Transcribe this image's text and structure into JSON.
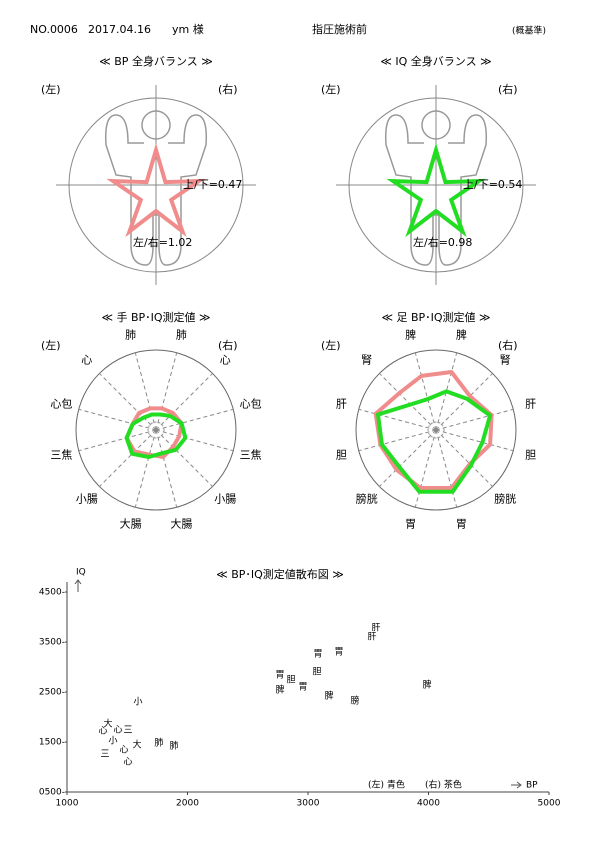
{
  "header": {
    "number": "NO.0006",
    "date": "2017.04.16",
    "name": "ym 様",
    "session": "指圧施術前",
    "note": "(概基準)"
  },
  "balance": [
    {
      "title": "≪ BP 全身バランス ≫",
      "left": "(左)",
      "right": "(右)",
      "up_down": "上/下=0.47",
      "left_right": "左/右=1.02",
      "color": "#f08c8c"
    },
    {
      "title": "≪ IQ 全身バランス ≫",
      "left": "(左)",
      "right": "(右)",
      "up_down": "上/下=0.54",
      "left_right": "左/右=0.98",
      "color": "#22dd22"
    }
  ],
  "radars": [
    {
      "title": "≪ 手 BP･IQ測定値 ≫",
      "left": "(左)",
      "right": "(右)",
      "labels": [
        "肺",
        "心",
        "心包",
        "三焦",
        "小腸",
        "大腸",
        "大腸",
        "小腸",
        "三焦",
        "心包",
        "心",
        "肺"
      ],
      "label_colors": [
        "#1a1aa0",
        "#1a1aa0",
        "#1a1aa0",
        "#8b1a1a",
        "#8b1a1a",
        "#8b1a1a",
        "#8b1a1a",
        "#8b1a1a",
        "#8b1a1a",
        "#1a1aa0",
        "#1a1aa0",
        "#1a1aa0"
      ],
      "series": [
        {
          "color": "#f08c8c",
          "values": [
            0.28,
            0.3,
            0.33,
            0.3,
            0.3,
            0.35,
            0.32,
            0.38,
            0.38,
            0.3,
            0.3,
            0.28
          ]
        },
        {
          "color": "#22dd22",
          "values": [
            0.2,
            0.25,
            0.33,
            0.38,
            0.35,
            0.3,
            0.35,
            0.42,
            0.38,
            0.3,
            0.22,
            0.2
          ]
        }
      ]
    },
    {
      "title": "≪ 足 BP･IQ測定値 ≫",
      "left": "(左)",
      "right": "(右)",
      "labels": [
        "脾",
        "腎",
        "肝",
        "胆",
        "膀胱",
        "胃",
        "胃",
        "膀胱",
        "胆",
        "肝",
        "腎",
        "脾"
      ],
      "label_colors": [
        "#1a1aa0",
        "#1a1aa0",
        "#1a1aa0",
        "#8b1a1a",
        "#8b1a1a",
        "#8b1a1a",
        "#8b1a1a",
        "#8b1a1a",
        "#8b1a1a",
        "#1a1aa0",
        "#1a1aa0",
        "#1a1aa0"
      ],
      "series": [
        {
          "color": "#f08c8c",
          "values": [
            0.75,
            0.6,
            0.72,
            0.7,
            0.6,
            0.75,
            0.75,
            0.7,
            0.72,
            0.78,
            0.65,
            0.7
          ]
        },
        {
          "color": "#22dd22",
          "values": [
            0.5,
            0.55,
            0.7,
            0.6,
            0.62,
            0.8,
            0.8,
            0.65,
            0.7,
            0.75,
            0.45,
            0.4
          ]
        }
      ]
    }
  ],
  "chart_data": {
    "type": "scatter",
    "title": "≪ BP･IQ測定値散布図 ≫",
    "xlabel": "BP",
    "ylabel": "IQ",
    "xlim": [
      1000,
      5000
    ],
    "ylim": [
      500,
      4500
    ],
    "xticks": [
      1000,
      2000,
      3000,
      4000,
      5000
    ],
    "yticks": [
      {
        "value": 500,
        "label": "0500-"
      },
      {
        "value": 1500,
        "label": "1500-"
      },
      {
        "value": 2500,
        "label": "2500-"
      },
      {
        "value": 3500,
        "label": "3500-"
      },
      {
        "value": 4500,
        "label": "4500-"
      }
    ],
    "series": [
      {
        "name": "(左) 青色",
        "color": "#1a1aa0",
        "x": [
          3564,
          3083,
          3075,
          2959,
          3174,
          3390,
          1589,
          1506,
          1473,
          1581,
          1763,
          1506
        ],
        "y": [
          3780,
          3260,
          2900,
          2600,
          2420,
          2320,
          2300,
          1740,
          1340,
          1440,
          1480,
          1100
        ],
        "labels": [
          "肝",
          "胃",
          "胆",
          "胃",
          "脾",
          "膀",
          "小",
          "三",
          "心",
          "大",
          "肺",
          "心"
        ]
      },
      {
        "name": "(右) 茶色",
        "color": "#8b1a1a",
        "x": [
          3531,
          3257,
          2768,
          2859,
          2768,
          3988,
          1340,
          1299,
          1423,
          1382,
          1315,
          1888
        ],
        "y": [
          3600,
          3300,
          2840,
          2740,
          2540,
          2640,
          1860,
          1720,
          1740,
          1520,
          1260,
          1420
        ],
        "labels": [
          "肝",
          "胃",
          "胃",
          "胆",
          "脾",
          "脾",
          "大",
          "心",
          "心",
          "小",
          "三",
          "肺"
        ]
      }
    ]
  }
}
